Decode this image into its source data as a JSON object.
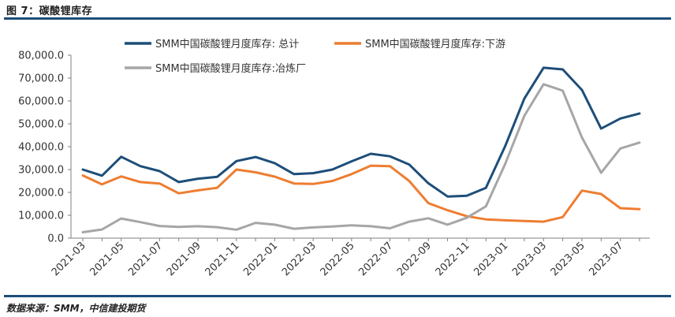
{
  "figure_title": "图 7：碳酸锂库存",
  "source": "数据来源：SMM，中信建投期货",
  "colors": {
    "total": "#1d4e79",
    "downstream": "#ee7d31",
    "smelter": "#a6a6a6",
    "rule": "#1d4e79"
  },
  "chart_data": {
    "type": "line",
    "title": "",
    "xlabel": "",
    "ylabel": "",
    "ylim": [
      0,
      80000
    ],
    "yticks": [
      "0.0",
      "10,000.0",
      "20,000.0",
      "30,000.0",
      "40,000.0",
      "50,000.0",
      "60,000.0",
      "70,000.0",
      "80,000.0"
    ],
    "xtick_labels": [
      "2021-03",
      "2021-05",
      "2021-07",
      "2021-09",
      "2021-11",
      "2022-01",
      "2022-03",
      "2022-05",
      "2022-07",
      "2022-09",
      "2022-11",
      "2023-01",
      "2023-03",
      "2023-05",
      "2023-07"
    ],
    "x": [
      "2021-03",
      "2021-04",
      "2021-05",
      "2021-06",
      "2021-07",
      "2021-08",
      "2021-09",
      "2021-10",
      "2021-11",
      "2021-12",
      "2022-01",
      "2022-02",
      "2022-03",
      "2022-04",
      "2022-05",
      "2022-06",
      "2022-07",
      "2022-08",
      "2022-09",
      "2022-10",
      "2022-11",
      "2022-12",
      "2023-01",
      "2023-02",
      "2023-03",
      "2023-04",
      "2023-05",
      "2023-06",
      "2023-07",
      "2023-08"
    ],
    "series": [
      {
        "name": "SMM中国碳酸锂月度库存: 总计",
        "key": "total",
        "values": [
          30000,
          27300,
          35600,
          31500,
          29300,
          24500,
          26000,
          26800,
          33700,
          35500,
          32800,
          28000,
          28400,
          30000,
          33600,
          36900,
          35800,
          32200,
          24000,
          18200,
          18500,
          22000,
          40200,
          61000,
          74500,
          73800,
          64800,
          47900,
          52300,
          54500
        ]
      },
      {
        "name": "SMM中国碳酸锂月度库存:下游",
        "key": "downstream",
        "values": [
          27400,
          23500,
          27000,
          24500,
          23900,
          19600,
          20900,
          22000,
          30000,
          28800,
          26900,
          23900,
          23700,
          25000,
          28000,
          31700,
          31500,
          25000,
          15300,
          12200,
          9600,
          8200,
          7800,
          7500,
          7200,
          9200,
          20800,
          19300,
          13100,
          12700
        ]
      },
      {
        "name": "SMM中国碳酸锂月度库存:冶炼厂",
        "key": "smelter",
        "values": [
          2600,
          3800,
          8600,
          7000,
          5300,
          4900,
          5200,
          4800,
          3700,
          6700,
          5900,
          4100,
          4700,
          5100,
          5600,
          5200,
          4300,
          7200,
          8700,
          5900,
          8900,
          13900,
          32400,
          53500,
          67300,
          64500,
          44000,
          28600,
          39200,
          41800
        ]
      }
    ],
    "legend_position": "top",
    "grid": false
  }
}
